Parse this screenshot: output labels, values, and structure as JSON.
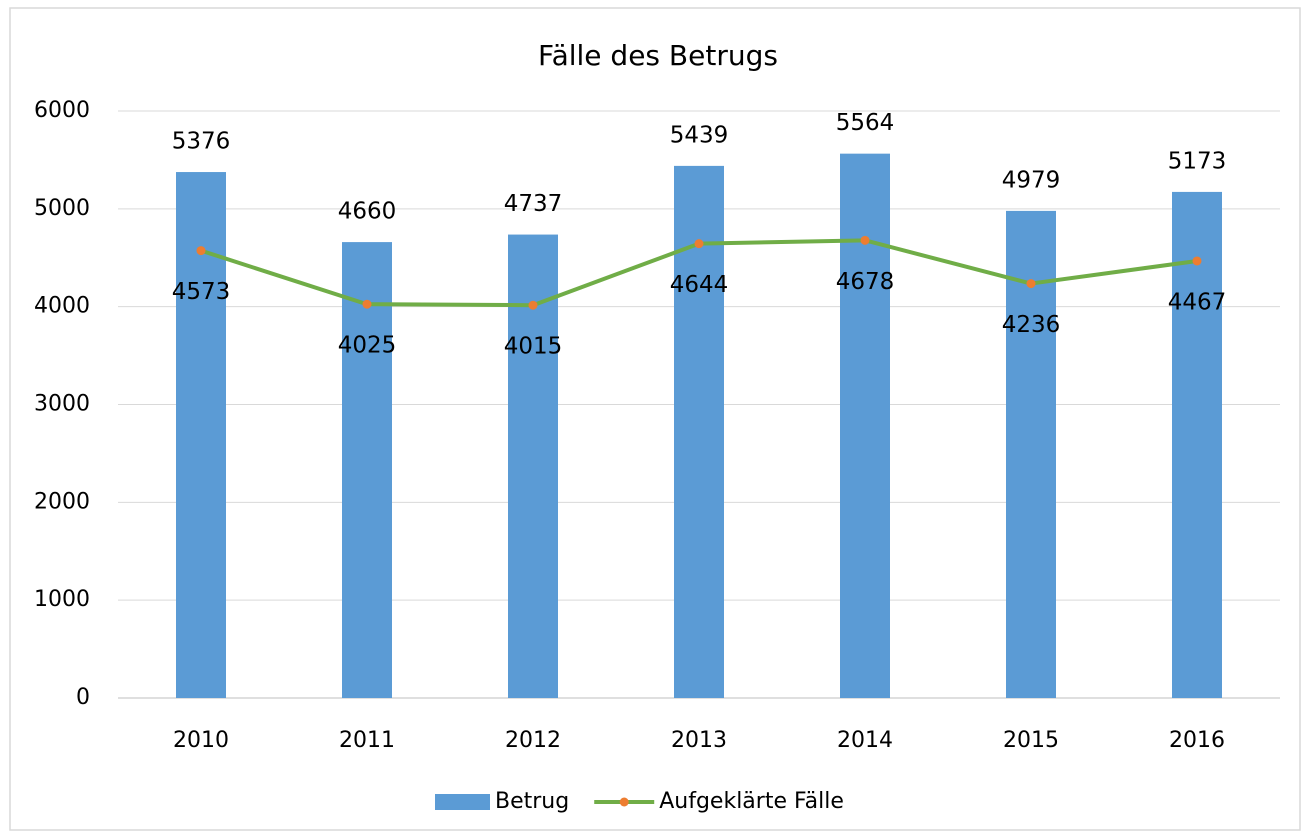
{
  "chart_data": {
    "type": "bar",
    "title": "Fälle des Betrugs",
    "categories": [
      "2010",
      "2011",
      "2012",
      "2013",
      "2014",
      "2015",
      "2016"
    ],
    "series": [
      {
        "name": "Betrug",
        "type": "bar",
        "color": "#5b9bd5",
        "values": [
          5376,
          4660,
          4737,
          5439,
          5564,
          4979,
          5173
        ]
      },
      {
        "name": "Aufgeklärte Fälle",
        "type": "line",
        "color": "#70ad47",
        "marker_color": "#ed7d31",
        "values": [
          4573,
          4025,
          4015,
          4644,
          4678,
          4236,
          4467
        ]
      }
    ],
    "ylim": [
      0,
      6000
    ],
    "yticks": [
      0,
      1000,
      2000,
      3000,
      4000,
      5000,
      6000
    ],
    "grid": true,
    "legend": "bottom"
  }
}
